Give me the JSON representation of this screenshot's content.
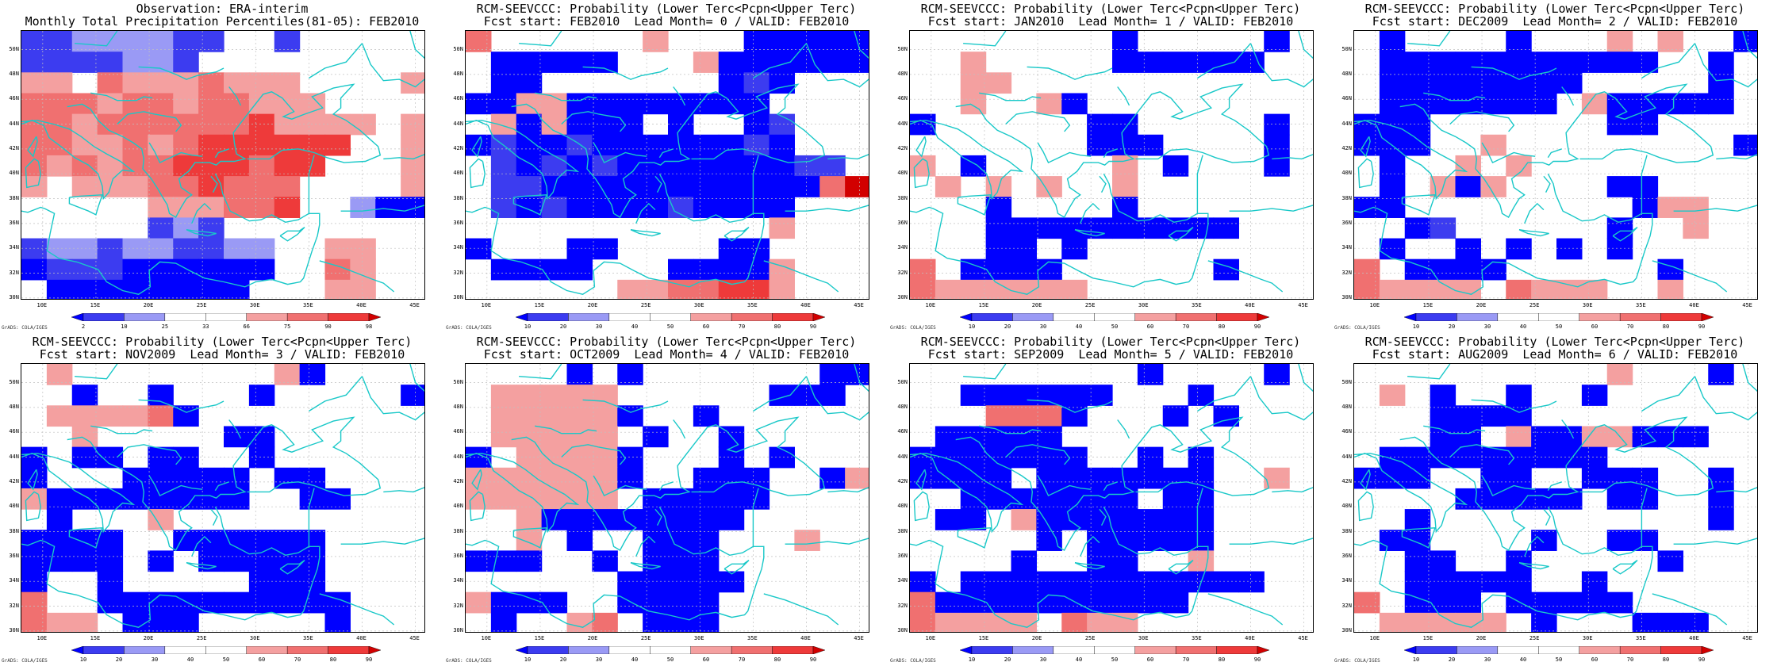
{
  "colors": {
    "dark_blue": "#0000ff",
    "mid_blue": "#3c3cf0",
    "light_blue": "#9a9af5",
    "white": "#ffffff",
    "light_red": "#f4a0a0",
    "mid_red": "#f07070",
    "red": "#ee3a3a",
    "dark_red": "#d20000",
    "coast": "#19c8c8",
    "grid": "#c0c0c0"
  },
  "map_axes": {
    "lat_labels": [
      "50N",
      "48N",
      "46N",
      "44N",
      "42N",
      "40N",
      "38N",
      "36N",
      "34N",
      "32N",
      "30N"
    ],
    "lon_labels": [
      "10E",
      "15E",
      "20E",
      "25E",
      "30E",
      "35E",
      "40E",
      "45E"
    ],
    "credit": "GrADS: COLA/IGES"
  },
  "panels": [
    {
      "title1": "Observation: ERA-interim",
      "title2": "Monthly Total Precipitation Percentiles(81-05): FEB2010",
      "colorbar": [
        "2",
        "10",
        "25",
        "33",
        "66",
        "75",
        "90",
        "98"
      ],
      "grid": [
        "1122221144133434",
        "1111221444443444",
        "5546555655544445",
        "6665665665554444",
        "6656666667555545",
        "6655656777777445",
        "6565667776774445",
        "5455566766644445",
        "4444455566744200",
        "4444412144444444",
        "1221221122445544",
        "0111000000446544",
        "4000000004445544"
      ]
    },
    {
      "title1": "RCM-SEEVCCC: Probability (Lower Terc<Pcpn<Upper Terc)",
      "title2": "Fcst start: FEB2010  Lead Month= 0 / VALID: FEB2010",
      "colorbar": [
        "10",
        "20",
        "30",
        "40",
        "50",
        "60",
        "70",
        "80",
        "90"
      ],
      "grid": [
        "6444444544400000",
        "4000004445000000",
        "4004444444010444",
        "0055000000004444",
        "4505000404401444",
        "0100100000010444",
        "4101010000000114",
        "4110000000000068",
        "4101000010000444",
        "4444444444445444",
        "0444004444004444",
        "4000044400005444",
        "4444445566775444"
      ]
    },
    {
      "title1": "RCM-SEEVCCC: Probability (Lower Terc<Pcpn<Upper Terc)",
      "title2": "Fcst start: JAN2010  Lead Month= 1 / VALID: FEB2010",
      "colorbar": [
        "10",
        "20",
        "30",
        "40",
        "50",
        "60",
        "70",
        "80",
        "90"
      ],
      "grid": [
        "4444444404444404",
        "4454444400000044",
        "4455444444444444",
        "4454450444444444",
        "0444444004444404",
        "4444444000444404",
        "5404444454044404",
        "4545454454444444",
        "4440444404444444",
        "4440000000000444",
        "4440040444444444",
        "6400004444440444",
        "6555555444444444"
      ]
    },
    {
      "title1": "RCM-SEEVCCC: Probability (Lower Terc<Pcpn<Upper Terc)",
      "title2": "Fcst start: DEC2009  Lead Month= 2 / VALID: FEB2010",
      "colorbar": [
        "10",
        "20",
        "30",
        "40",
        "50",
        "60",
        "70",
        "80",
        "90"
      ],
      "grid": [
        "4044440444545440",
        "4000000000004404",
        "4000000004444404",
        "4000000045000004",
        "0004444444004444",
        "0004454444444440",
        "4044545444444444",
        "4045054444004444",
        "0044444444405544",
        "4401444444044544",
        "4044040404044444",
        "6400004444440444",
        "6555546555445444"
      ]
    },
    {
      "title1": "RCM-SEEVCCC: Probability (Lower Terc<Pcpn<Upper Terc)",
      "title2": "Fcst start: NOV2009  Lead Month= 3 / VALID: FEB2010",
      "colorbar": [
        "10",
        "20",
        "30",
        "40",
        "50",
        "60",
        "70",
        "80",
        "90"
      ],
      "grid": [
        "4544444444504444",
        "4404404440444440",
        "4555560444444444",
        "4454444400444444",
        "0400400440444444",
        "0444000004004444",
        "5000000004400444",
        "4044454444444444",
        "0000440000004444",
        "0000404000004444",
        "0440444440004444",
        "6440000000000444",
        "6554000444440444"
      ]
    },
    {
      "title1": "RCM-SEEVCCC: Probability (Lower Terc<Pcpn<Upper Terc)",
      "title2": "Fcst start: OCT2009  Lead Month= 4 / VALID: FEB2010",
      "colorbar": [
        "10",
        "20",
        "30",
        "40",
        "50",
        "60",
        "70",
        "80",
        "90"
      ],
      "grid": [
        "4444040444444400",
        "4555554444440004",
        "4555550440444444",
        "4555554044044444",
        "0455550444040444",
        "5555550440004405",
        "5555554000004444",
        "4450000000044444",
        "4454044000444544",
        "0004404000444444",
        "4444440000044444",
        "5000440000444444",
        "4044564000444444"
      ]
    },
    {
      "title1": "RCM-SEEVCCC: Probability (Lower Terc<Pcpn<Upper Terc)",
      "title2": "Fcst start: SEP2009  Lead Month= 5 / VALID: FEB2010",
      "colorbar": [
        "10",
        "20",
        "30",
        "40",
        "50",
        "60",
        "70",
        "80",
        "90"
      ],
      "grid": [
        "4444444440444404",
        "4400000044404444",
        "4446660444040444",
        "4000004444444444",
        "0000000440404444",
        "0000400000004454",
        "4400000004004444",
        "4004500000004444",
        "4444404000004444",
        "4444044004454444",
        "0400000000000044",
        "6000000000044444",
        "6555546554444444"
      ]
    },
    {
      "title1": "RCM-SEEVCCC: Probability (Lower Terc<Pcpn<Upper Terc)",
      "title2": "Fcst start: AUG2009  Lead Month= 6 / VALID: FEB2010",
      "colorbar": [
        "10",
        "20",
        "30",
        "40",
        "50",
        "60",
        "70",
        "80",
        "90"
      ],
      "grid": [
        "4444444444544404",
        "4540440440444444",
        "4440000444444444",
        "4440045005500044",
        "4000000000444444",
        "0004400440004404",
        "4444000004004404",
        "4404444444444404",
        "4004444044004444",
        "4400440444440444",
        "4400000440444444",
        "6400040000044444",
        "4555554044400044"
      ]
    }
  ]
}
